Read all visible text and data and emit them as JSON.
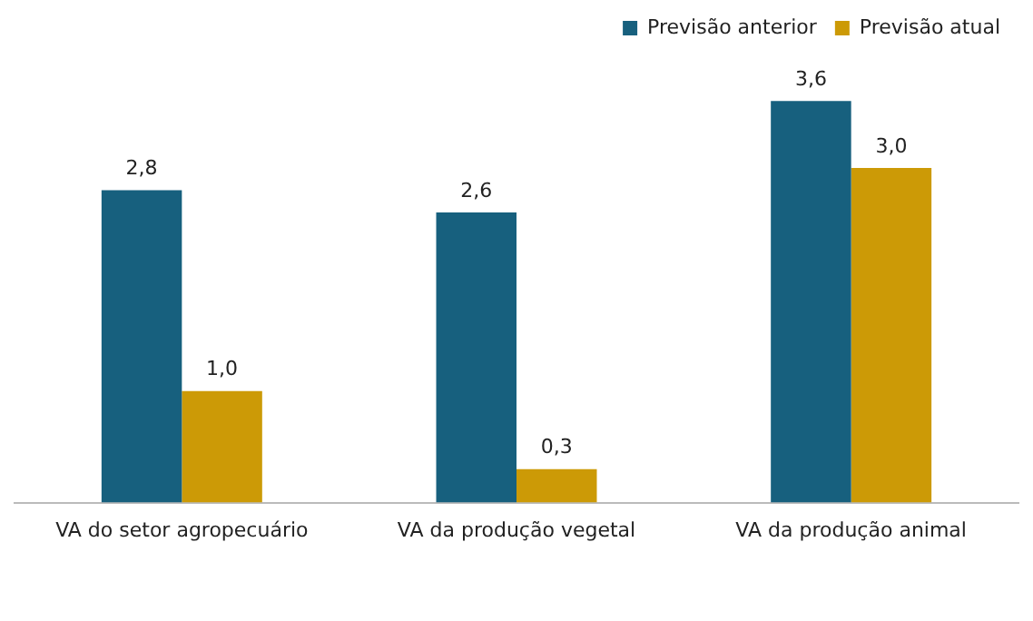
{
  "chart_data": {
    "type": "bar",
    "categories": [
      "VA do setor agropecuário",
      "VA da produção vegetal",
      "VA da produção animal"
    ],
    "series": [
      {
        "name": "Previsão anterior",
        "color": "#17607e",
        "values": [
          2.8,
          2.6,
          3.6
        ],
        "value_labels": [
          "2,8",
          "2,6",
          "3,6"
        ]
      },
      {
        "name": "Previsão atual",
        "color": "#cc9a06",
        "values": [
          1.0,
          0.3,
          3.0
        ],
        "value_labels": [
          "1,0",
          "0,3",
          "3,0"
        ]
      }
    ],
    "legend": "top right",
    "grid": false
  }
}
